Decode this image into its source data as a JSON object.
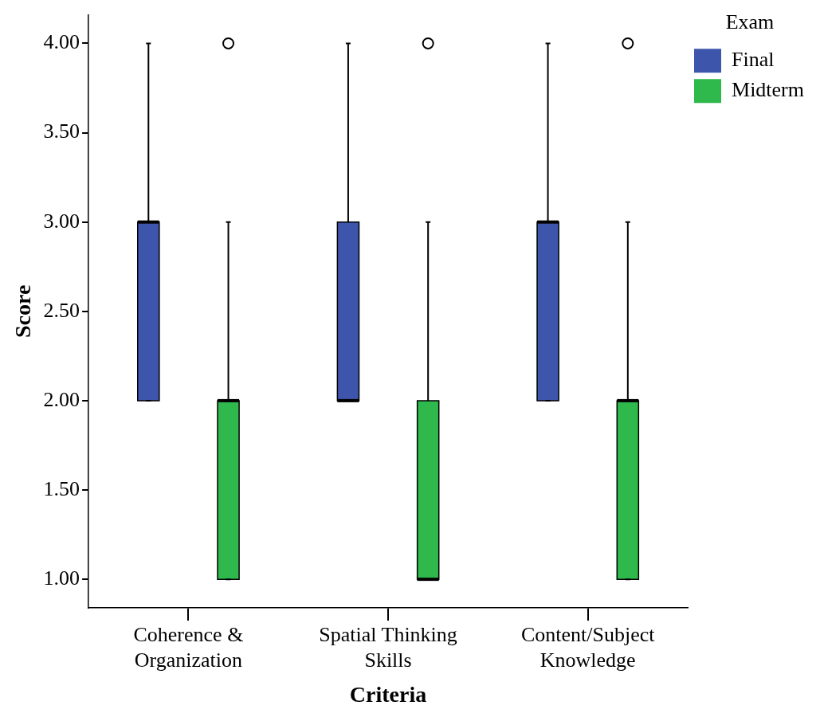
{
  "chart_data": {
    "type": "box",
    "xlabel": "Criteria",
    "ylabel": "Score",
    "legend_title": "Exam",
    "legend": "top right",
    "grid": false,
    "categories": [
      "Coherence & Organization",
      "Spatial Thinking Skills",
      "Content/Subject Knowledge"
    ],
    "ylim": [
      0.84,
      4.16
    ],
    "yticks": [
      {
        "value": 1,
        "label": "1.00"
      },
      {
        "value": 1.5,
        "label": "1.50"
      },
      {
        "value": 2,
        "label": "2.00"
      },
      {
        "value": 2.5,
        "label": "2.50"
      },
      {
        "value": 3,
        "label": "3.00"
      },
      {
        "value": 3.5,
        "label": "3.50"
      },
      {
        "value": 4,
        "label": "4.00"
      }
    ],
    "series": [
      {
        "name": "Final",
        "color": "#3d56ac",
        "boxes": [
          {
            "low": 2,
            "q1": 2,
            "median": 3,
            "q3": 3,
            "high": 4
          },
          {
            "low": 2,
            "q1": 2,
            "median": 2,
            "q3": 3,
            "high": 4
          },
          {
            "low": 2,
            "q1": 2,
            "median": 3,
            "q3": 3,
            "high": 4
          }
        ]
      },
      {
        "name": "Midterm",
        "color": "#2fb84b",
        "boxes": [
          {
            "low": 1,
            "q1": 1,
            "median": 2,
            "q3": 2,
            "high": 3,
            "outliers": [
              4
            ]
          },
          {
            "low": 1,
            "q1": 1,
            "median": 1,
            "q3": 2,
            "high": 3,
            "outliers": [
              4
            ]
          },
          {
            "low": 1,
            "q1": 1,
            "median": 2,
            "q3": 2,
            "high": 3,
            "outliers": [
              4
            ]
          }
        ]
      }
    ]
  }
}
